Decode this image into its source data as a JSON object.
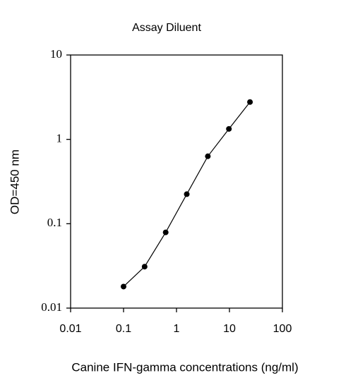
{
  "chart_data": {
    "type": "line",
    "title": "Assay Diluent",
    "x_label": "Canine IFN-gamma concentrations (ng/ml)",
    "y_label": "OD=450 nm",
    "xscale": "log",
    "yscale": "log",
    "xlim": [
      0.01,
      100
    ],
    "xticks": [
      0.01,
      0.1,
      1,
      10,
      100
    ],
    "ylim": [
      0.01,
      10
    ],
    "yticks": [
      0.01,
      0.1,
      1,
      10
    ],
    "x": [
      0.1,
      0.25,
      0.625,
      1.5625,
      3.9063,
      9.7656,
      24.4141
    ],
    "series": [
      {
        "color": "#000000",
        "values": [
          0.018,
          0.031,
          0.079,
          0.224,
          0.63,
          1.33,
          2.77
        ]
      }
    ]
  }
}
